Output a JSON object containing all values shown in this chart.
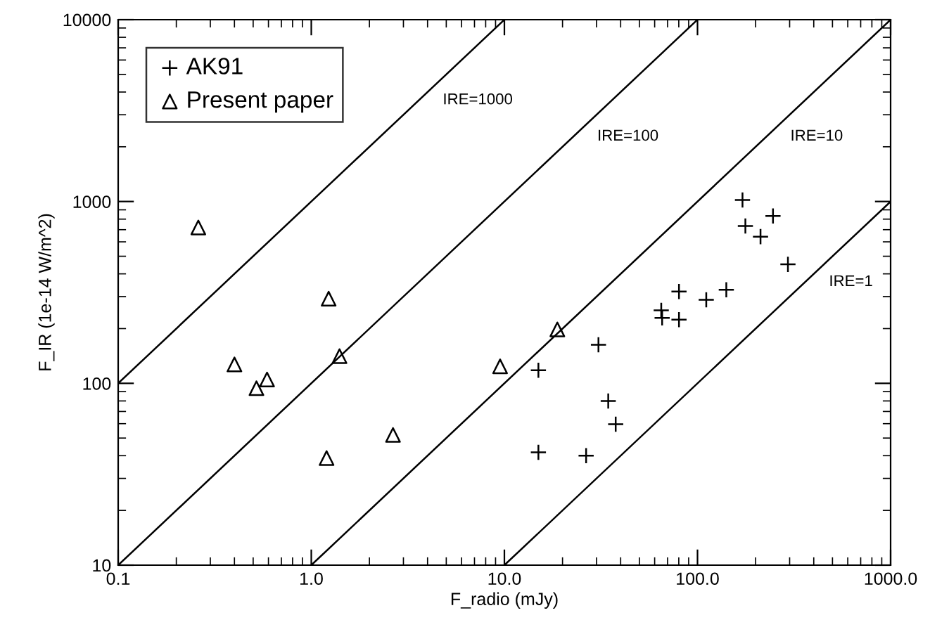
{
  "chart_data": {
    "type": "scatter",
    "xlabel": "F_radio (mJy)",
    "ylabel": "F_IR (1e-14 W/m^2)",
    "log": "xy",
    "grid": false,
    "legend": "top left",
    "xlim": [
      0.1,
      1000
    ],
    "ylim": [
      10,
      10000
    ],
    "xticks": [
      {
        "value": 0.1,
        "label": "0.1"
      },
      {
        "value": 1,
        "label": "1.0"
      },
      {
        "value": 10,
        "label": "10.0"
      },
      {
        "value": 100,
        "label": "100.0"
      },
      {
        "value": 1000,
        "label": "1000.0"
      }
    ],
    "yticks": [
      10,
      100,
      1000,
      10000
    ],
    "series": [
      {
        "name": "AK91",
        "marker": "cross",
        "color": "#000000",
        "x": [
          15.0,
          15.0,
          30.7,
          34.5,
          37.7,
          26.5,
          64.9,
          65.6,
          80.2,
          80.2,
          111,
          141,
          171,
          177,
          212,
          246,
          294
        ],
        "values": [
          118,
          41.7,
          163,
          80,
          59.6,
          40,
          252,
          229,
          320,
          224,
          288,
          327,
          1019,
          733,
          641,
          832,
          451
        ]
      },
      {
        "name": "Present paper",
        "marker": "triangle",
        "color": "#000000",
        "x": [
          0.26,
          0.4,
          0.52,
          0.59,
          1.23,
          1.4,
          1.2,
          2.65,
          9.5,
          18.8
        ],
        "values": [
          720,
          127,
          94,
          105,
          292,
          141,
          38.8,
          52,
          124,
          198
        ]
      },
      {
        "name": "IRE=1000",
        "type": "line",
        "color": "#000000",
        "x": [
          0.1,
          10
        ],
        "values": [
          100,
          10000
        ]
      },
      {
        "name": "IRE=100",
        "type": "line",
        "color": "#000000",
        "x": [
          0.1,
          100
        ],
        "values": [
          10,
          10000
        ]
      },
      {
        "name": "IRE=10",
        "type": "line",
        "color": "#000000",
        "x": [
          1,
          1000
        ],
        "values": [
          10,
          10000
        ]
      },
      {
        "name": "IRE=1",
        "type": "line",
        "color": "#000000",
        "x": [
          10,
          1000
        ],
        "values": [
          10,
          1000
        ]
      }
    ]
  }
}
